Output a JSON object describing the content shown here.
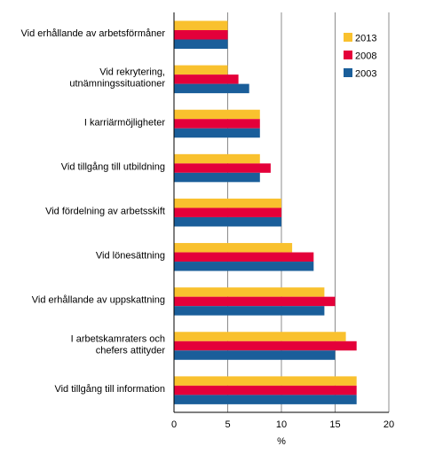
{
  "chart_data": {
    "type": "bar",
    "orientation": "horizontal",
    "title": "",
    "xlabel": "%",
    "ylabel": "",
    "xlim": [
      0,
      20
    ],
    "xticks": [
      0,
      5,
      10,
      15,
      20
    ],
    "grid": "vertical",
    "legend_position": "top-right",
    "categories": [
      [
        "Vid erhållande av arbetsförmåner"
      ],
      [
        "Vid rekrytering,",
        "utnämningssituationer"
      ],
      [
        "I karriärmöjligheter"
      ],
      [
        "Vid tillgång till utbildning"
      ],
      [
        "Vid fördelning av arbetsskift"
      ],
      [
        "Vid lönesättning"
      ],
      [
        "Vid erhållande av uppskattning"
      ],
      [
        "I arbetskamraters och",
        "chefers attityder"
      ],
      [
        "Vid tillgång till information"
      ]
    ],
    "series": [
      {
        "name": "2013",
        "color": "#F9C12E",
        "values": [
          5,
          5,
          8,
          8,
          10,
          11,
          14,
          16,
          17
        ]
      },
      {
        "name": "2008",
        "color": "#E4003A",
        "values": [
          5,
          6,
          8,
          9,
          10,
          13,
          15,
          17,
          17
        ]
      },
      {
        "name": "2003",
        "color": "#1A5E9A",
        "values": [
          5,
          7,
          8,
          8,
          10,
          13,
          14,
          15,
          17
        ]
      }
    ]
  }
}
